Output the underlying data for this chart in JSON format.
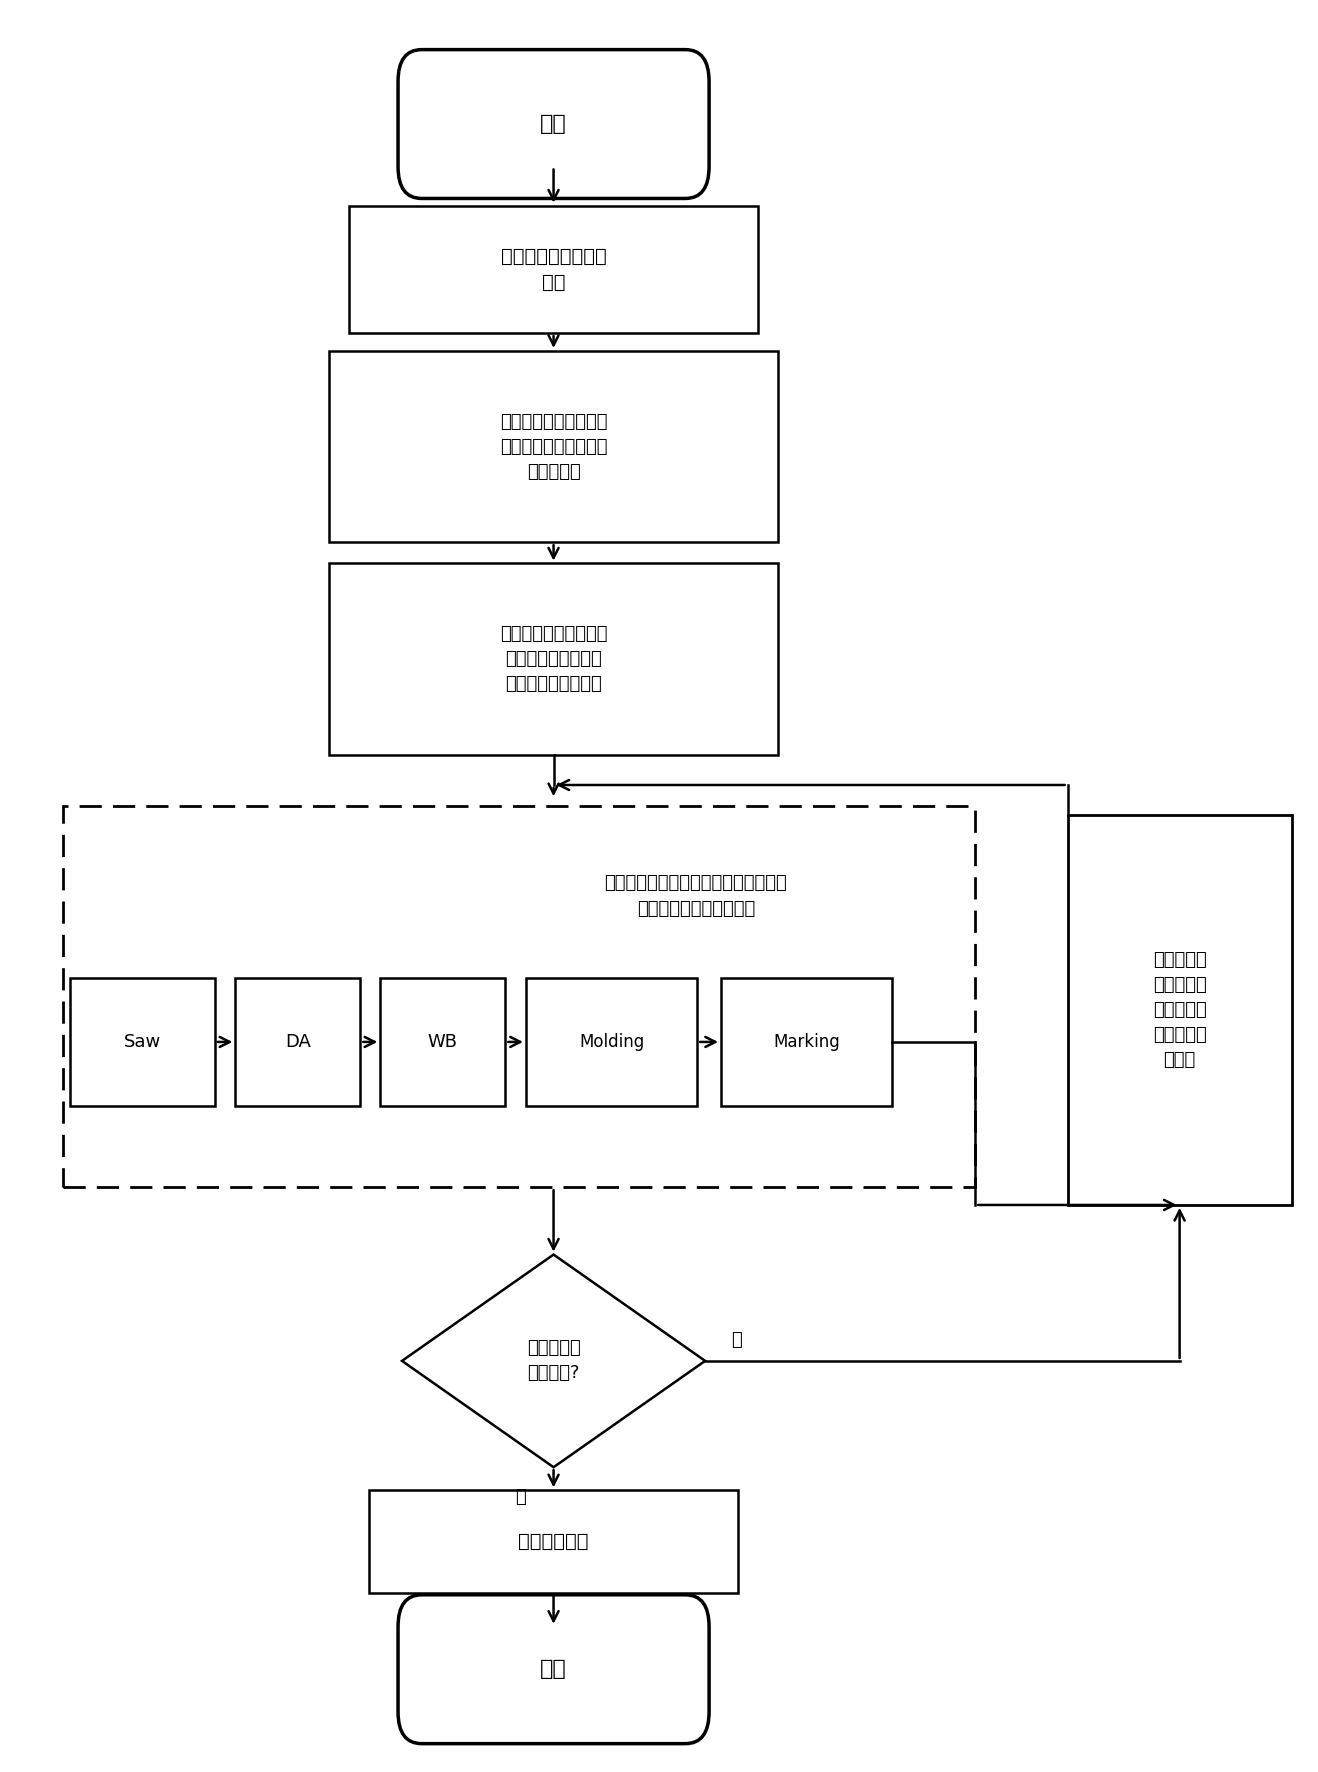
{
  "bg_color": "#ffffff",
  "nodes": {
    "start_text": "开始",
    "box1_text": "确定加工中心的优化\n次序",
    "box2_text": "对各加工中心按照加工\n能力由大到小的顺序进\n行机器排序",
    "box3_text": "建立待求解问题与微粒\n群优化之间的映射关\n系，并确定算法参数",
    "dashed_label": "按照确定的优化次序对各加工中心进行\n各微粒群优化子问题求解",
    "saw_text": "Saw",
    "da_text": "DA",
    "wb_text": "WB",
    "molding_text": "Molding",
    "marking_text": "Marking",
    "right_box_text": "将前一加工\n中心的优化\n结果作为下\n一加工中心\n的输入",
    "diamond_text": "整个生产线\n优化完成?",
    "box4_text": "输出最优结果",
    "end_text": "结束",
    "yes_label": "是",
    "no_label": "否"
  }
}
